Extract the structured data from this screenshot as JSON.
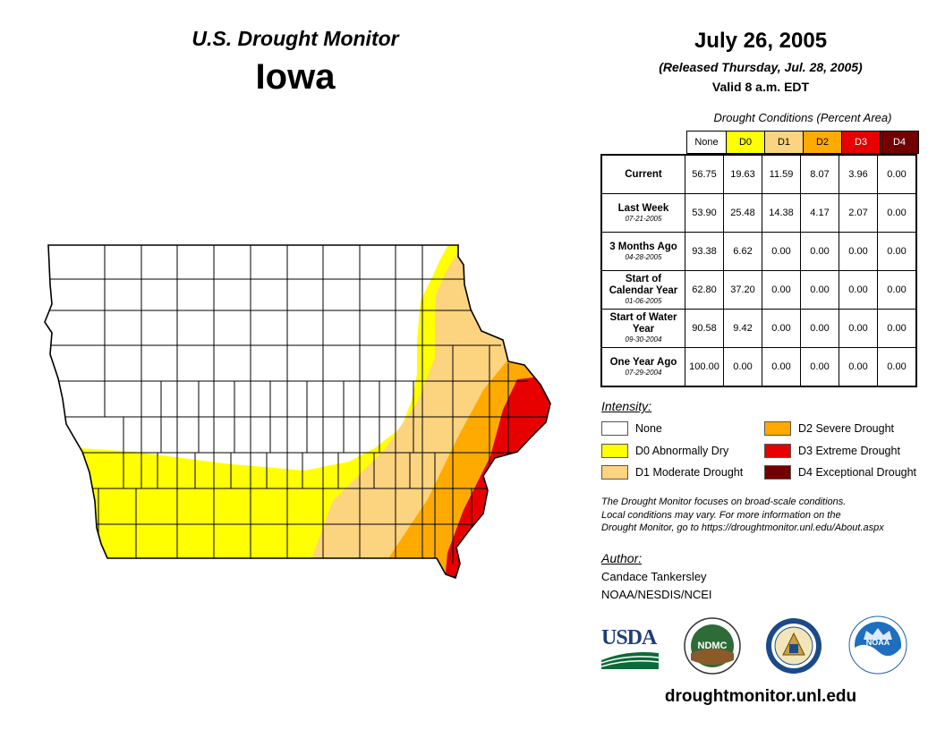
{
  "header": {
    "product": "U.S. Drought Monitor",
    "state": "Iowa",
    "date": "July 26, 2005",
    "released": "(Released Thursday, Jul. 28, 2005)",
    "valid": "Valid 8 a.m. EDT"
  },
  "table": {
    "title": "Drought Conditions (Percent Area)",
    "categories": [
      {
        "label": "None",
        "color": "#ffffff",
        "text_color": "#000000"
      },
      {
        "label": "D0",
        "color": "#ffff00",
        "text_color": "#000000"
      },
      {
        "label": "D1",
        "color": "#fcd37f",
        "text_color": "#000000"
      },
      {
        "label": "D2",
        "color": "#ffaa00",
        "text_color": "#000000"
      },
      {
        "label": "D3",
        "color": "#e60000",
        "text_color": "#ffffff"
      },
      {
        "label": "D4",
        "color": "#730000",
        "text_color": "#ffffff"
      }
    ],
    "rows": [
      {
        "label": "Current",
        "sub": "",
        "values": [
          "56.75",
          "19.63",
          "11.59",
          "8.07",
          "3.96",
          "0.00"
        ]
      },
      {
        "label": "Last Week",
        "sub": "07-21-2005",
        "values": [
          "53.90",
          "25.48",
          "14.38",
          "4.17",
          "2.07",
          "0.00"
        ]
      },
      {
        "label": "3 Months Ago",
        "sub": "04-28-2005",
        "values": [
          "93.38",
          "6.62",
          "0.00",
          "0.00",
          "0.00",
          "0.00"
        ]
      },
      {
        "label": "Start of Calendar Year",
        "sub": "01-06-2005",
        "values": [
          "62.80",
          "37.20",
          "0.00",
          "0.00",
          "0.00",
          "0.00"
        ]
      },
      {
        "label": "Start of Water Year",
        "sub": "09-30-2004",
        "values": [
          "90.58",
          "9.42",
          "0.00",
          "0.00",
          "0.00",
          "0.00"
        ]
      },
      {
        "label": "One Year Ago",
        "sub": "07-29-2004",
        "values": [
          "100.00",
          "0.00",
          "0.00",
          "0.00",
          "0.00",
          "0.00"
        ]
      }
    ]
  },
  "legend": {
    "title": "Intensity:",
    "items": [
      {
        "label": "None",
        "color": "#ffffff"
      },
      {
        "label": "D0 Abnormally Dry",
        "color": "#ffff00"
      },
      {
        "label": "D1 Moderate Drought",
        "color": "#fcd37f"
      },
      {
        "label": "D2 Severe Drought",
        "color": "#ffaa00"
      },
      {
        "label": "D3 Extreme Drought",
        "color": "#e60000"
      },
      {
        "label": "D4 Exceptional Drought",
        "color": "#730000"
      }
    ]
  },
  "disclaimer": {
    "line1": "The Drought Monitor focuses on broad-scale conditions.",
    "line2": "Local conditions may vary. For more information on the",
    "line3": "Drought Monitor, go to https://droughtmonitor.unl.edu/About.aspx"
  },
  "author": {
    "title": "Author:",
    "name": "Candace Tankersley",
    "org": "NOAA/NESDIS/NCEI"
  },
  "logos": {
    "usda": "USDA",
    "ndmc": "NDMC",
    "noaa": "NOAA"
  },
  "url": "droughtmonitor.unl.edu"
}
